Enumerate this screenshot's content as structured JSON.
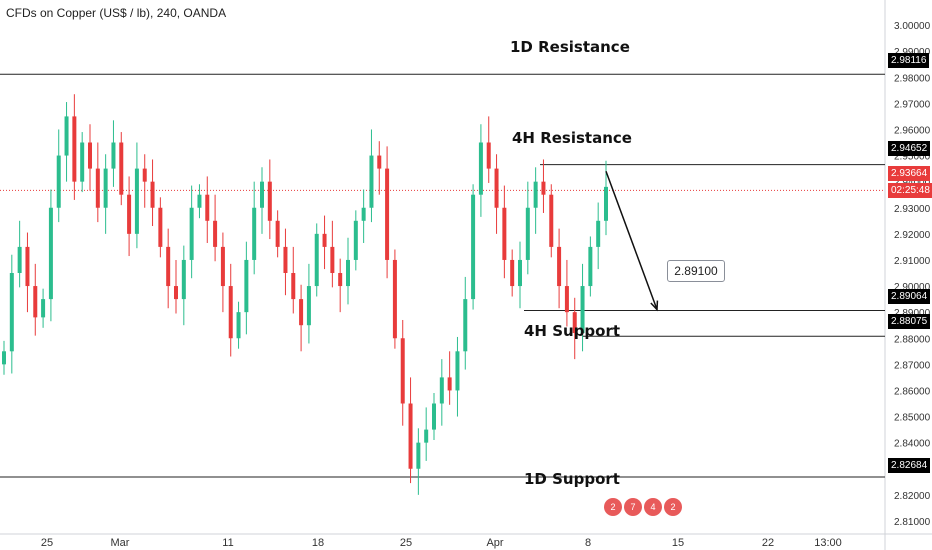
{
  "header": {
    "title": "CFDs on Copper (US$ / lb), 240, OANDA"
  },
  "chart_data": {
    "type": "candlestick",
    "title": "CFDs on Copper (US$ / lb), 240, OANDA",
    "ylim": [
      2.805,
      3.005
    ],
    "y_ticks": [
      "3.00000",
      "2.99000",
      "2.98000",
      "2.97000",
      "2.96000",
      "2.95000",
      "2.94000",
      "2.93000",
      "2.92000",
      "2.91000",
      "2.90000",
      "2.89000",
      "2.88000",
      "2.87000",
      "2.86000",
      "2.85000",
      "2.84000",
      "2.83000",
      "2.82000",
      "2.81000"
    ],
    "x_ticks": [
      "25",
      "Mar",
      "11",
      "18",
      "25",
      "Apr",
      "8",
      "15",
      "22",
      "13:00"
    ],
    "closes": [
      2.875,
      2.905,
      2.915,
      2.9,
      2.888,
      2.895,
      2.93,
      2.95,
      2.965,
      2.94,
      2.955,
      2.945,
      2.93,
      2.945,
      2.955,
      2.935,
      2.92,
      2.945,
      2.94,
      2.93,
      2.915,
      2.9,
      2.895,
      2.91,
      2.93,
      2.935,
      2.925,
      2.915,
      2.9,
      2.88,
      2.89,
      2.91,
      2.93,
      2.94,
      2.925,
      2.915,
      2.905,
      2.895,
      2.885,
      2.9,
      2.92,
      2.915,
      2.905,
      2.9,
      2.91,
      2.925,
      2.93,
      2.95,
      2.945,
      2.91,
      2.88,
      2.855,
      2.83,
      2.84,
      2.845,
      2.855,
      2.865,
      2.86,
      2.875,
      2.895,
      2.935,
      2.955,
      2.945,
      2.93,
      2.91,
      2.9,
      2.91,
      2.93,
      2.94,
      2.935,
      2.915,
      2.9,
      2.89,
      2.882,
      2.9,
      2.915,
      2.925,
      2.938
    ],
    "levels": [
      {
        "label": "1D Resistance",
        "value": 2.98116,
        "tag": "2.98116"
      },
      {
        "label": "4H Resistance",
        "value": 2.94652,
        "tag": "2.94652"
      },
      {
        "label": "",
        "value": 2.89064,
        "tag": "2.89064"
      },
      {
        "label": "4H Support",
        "value": 2.88075,
        "tag": "2.88075"
      },
      {
        "label": "1D Support",
        "value": 2.82684,
        "tag": "2.82684"
      }
    ],
    "current_price": "2.93664",
    "countdown": "02:25:48",
    "target": "2.89100",
    "events": [
      "2",
      "7",
      "4",
      "2"
    ]
  }
}
